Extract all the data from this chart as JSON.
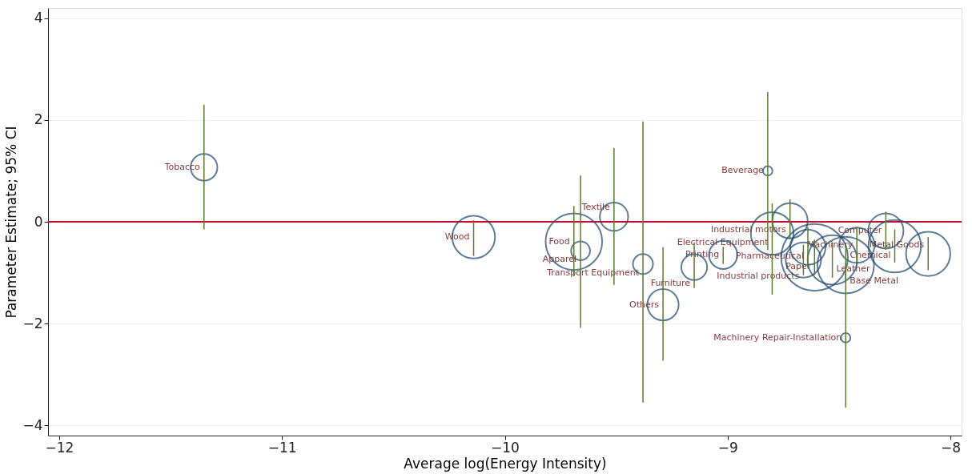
{
  "chart_data": {
    "type": "bubble",
    "xlabel": "Average log(Energy Intensity)",
    "ylabel": "Parameter Estimate; 95% CI",
    "xlim": [
      -12.05,
      -7.95
    ],
    "ylim": [
      -4.2,
      4.2
    ],
    "xticks": [
      -12,
      -11,
      -10,
      -9,
      -8
    ],
    "yticks": [
      -4,
      -2,
      0,
      2,
      4
    ],
    "grid": "y",
    "marker": "circle",
    "ref_lines": [
      {
        "axis": "y",
        "value": 0,
        "color": "#c8102e"
      }
    ],
    "series": [
      {
        "color": "#1a476f",
        "x": [
          -11.35,
          -10.14,
          -9.69,
          -9.66,
          -9.38,
          -9.51,
          -9.29,
          -9.15,
          -9.02,
          -8.66,
          -8.82,
          -8.8,
          -8.72,
          -8.64,
          -8.61,
          -8.53,
          -8.47,
          -8.47,
          -8.42,
          -8.29,
          -8.25,
          -8.1
        ],
        "values": [
          1.07,
          -0.3,
          -0.39,
          -0.57,
          -0.83,
          0.1,
          -1.63,
          -0.89,
          -0.65,
          -0.75,
          1.0,
          -0.23,
          0.02,
          -0.5,
          -0.7,
          -0.75,
          -0.85,
          -2.28,
          -0.46,
          -0.18,
          -0.48,
          -0.63
        ],
        "errors": [
          [
            -0.15,
            2.3
          ],
          [
            -0.67,
            0.03
          ],
          [
            -1.07,
            0.31
          ],
          [
            -2.08,
            0.91
          ],
          [
            -3.55,
            1.97
          ],
          [
            -1.24,
            1.45
          ],
          [
            -2.73,
            -0.5
          ],
          [
            -1.3,
            -0.41
          ],
          [
            -0.83,
            -0.49
          ],
          [
            -1.05,
            -0.45
          ],
          [
            -0.55,
            2.55
          ],
          [
            -1.43,
            0.36
          ],
          [
            -0.34,
            0.44
          ],
          [
            -0.9,
            -0.1
          ],
          [
            -1.05,
            -0.35
          ],
          [
            -1.1,
            -0.4
          ],
          [
            -1.2,
            -0.5
          ],
          [
            -3.65,
            -0.8
          ],
          [
            -0.8,
            -0.1
          ],
          [
            -0.55,
            0.2
          ],
          [
            -0.8,
            -0.15
          ],
          [
            -0.95,
            -0.3
          ]
        ],
        "sizes": [
          0.16,
          0.41,
          0.72,
          0.08,
          0.09,
          0.18,
          0.22,
          0.15,
          0.18,
          0.28,
          0.02,
          0.41,
          0.28,
          0.28,
          1,
          0.55,
          0.72,
          0.02,
          0.28,
          0.28,
          0.62,
          0.44
        ]
      }
    ],
    "annotations": [
      {
        "text": "Tobacco",
        "x": -11.35,
        "y": 1.07
      },
      {
        "text": "Wood",
        "x": -10.14,
        "y": -0.3
      },
      {
        "text": "Food",
        "x": -9.69,
        "y": -0.39
      },
      {
        "text": "Apparel",
        "x": -9.66,
        "y": -0.57
      },
      {
        "text": "Transport Equipment",
        "x": -9.38,
        "y": -0.83
      },
      {
        "text": "Textile",
        "x": -9.51,
        "y": 0.1
      },
      {
        "text": "Others",
        "x": -9.29,
        "y": -1.63
      },
      {
        "text": "Furniture",
        "x": -9.15,
        "y": -0.89
      },
      {
        "text": "Printing",
        "x": -9.02,
        "y": -0.65
      },
      {
        "text": "Industrial products",
        "x": -8.66,
        "y": -0.75
      },
      {
        "text": "Beverage",
        "x": -8.82,
        "y": 1.0
      },
      {
        "text": "Electrical Equipment",
        "x": -8.8,
        "y": -0.23
      },
      {
        "text": "Industrial motors",
        "x": -8.72,
        "y": 0.02
      },
      {
        "text": "Pharmaceutical",
        "x": -8.64,
        "y": -0.5
      },
      {
        "text": "Paper",
        "x": -8.61,
        "y": -0.7
      },
      {
        "text": "Leather",
        "x": -8.53,
        "y": -0.75
      },
      {
        "text": "Base Metal",
        "x": -8.47,
        "y": -0.85
      },
      {
        "text": "Machinery Repair-Installation",
        "x": -8.47,
        "y": -2.28
      },
      {
        "text": "Machinery",
        "x": -8.42,
        "y": -0.46
      },
      {
        "text": "Computer",
        "x": -8.29,
        "y": -0.18
      },
      {
        "text": "Chemical",
        "x": -8.25,
        "y": -0.48
      },
      {
        "text": "Metal Goods",
        "x": -8.1,
        "y": -0.63
      }
    ]
  }
}
